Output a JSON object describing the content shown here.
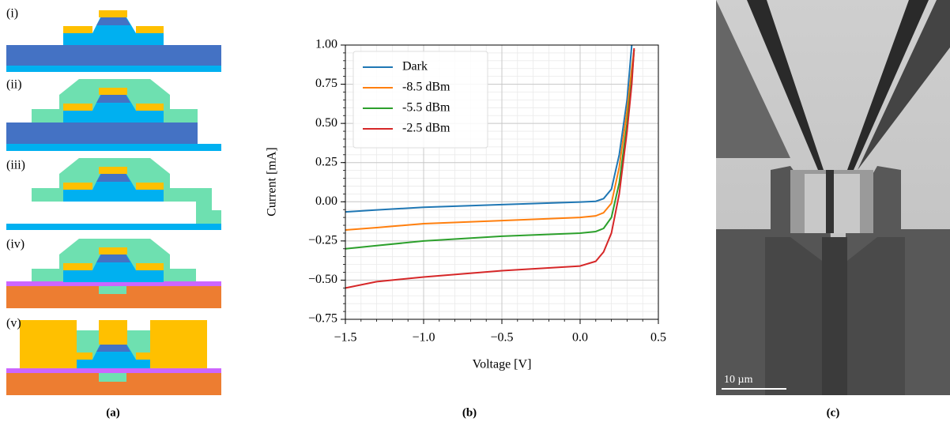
{
  "chart_data": {
    "type": "line",
    "xlabel": "Voltage [V]",
    "ylabel": "Current [mA]",
    "x": [
      -1.5,
      -1.3,
      -1.0,
      -0.5,
      0,
      0.1,
      0.15,
      0.2,
      0.25,
      0.3,
      0.33,
      0.345
    ],
    "series": [
      {
        "name": "Dark",
        "color": "#1f77b4",
        "values": [
          -0.065,
          -0.052,
          -0.035,
          -0.018,
          -0.002,
          0.003,
          0.02,
          0.08,
          0.3,
          0.65,
          1.0,
          null
        ]
      },
      {
        "name": "-8.5 dBm",
        "color": "#ff7f0e",
        "values": [
          -0.18,
          -0.165,
          -0.14,
          -0.12,
          -0.1,
          -0.09,
          -0.07,
          -0.01,
          0.22,
          0.58,
          0.85,
          0.97
        ]
      },
      {
        "name": "-5.5 dBm",
        "color": "#2ca02c",
        "values": [
          -0.3,
          -0.28,
          -0.25,
          -0.22,
          -0.2,
          -0.19,
          -0.17,
          -0.1,
          0.12,
          0.5,
          0.78,
          0.97
        ]
      },
      {
        "name": "-2.5 dBm",
        "color": "#d62728",
        "values": [
          -0.55,
          -0.51,
          -0.48,
          -0.44,
          -0.41,
          -0.38,
          -0.32,
          -0.2,
          0.05,
          0.45,
          0.75,
          0.98
        ]
      }
    ],
    "xlim": [
      -1.5,
      0.5
    ],
    "xticks": [
      {
        "value": -1.5,
        "label": "−1.5"
      },
      {
        "value": -1.0,
        "label": "−1.0"
      },
      {
        "value": -0.5,
        "label": "−0.5"
      },
      {
        "value": 0,
        "label": "0.0"
      },
      0.5
    ],
    "ylim": [
      -0.75,
      1.0
    ],
    "yticks": [
      {
        "value": -0.75,
        "label": "−0.75"
      },
      {
        "value": -0.5,
        "label": "−0.50"
      },
      {
        "value": -0.25,
        "label": "−0.25"
      },
      {
        "value": 0,
        "label": "0.00"
      },
      {
        "value": 0.25,
        "label": "0.25"
      },
      {
        "value": 0.5,
        "label": "0.50"
      },
      {
        "value": 0.75,
        "label": "0.75"
      },
      {
        "value": 1.0,
        "label": "1.00"
      }
    ],
    "grid": true,
    "minor_grid": {
      "x": 0.1,
      "y": 0.05
    },
    "legend": "upper left"
  },
  "schematic": {
    "steps": [
      "(i)",
      "(ii)",
      "(iii)",
      "(iv)",
      "(v)"
    ]
  },
  "sem": {
    "scale_bar": "10 µm"
  },
  "captions": [
    "(a)",
    "(b)",
    "(c)"
  ]
}
